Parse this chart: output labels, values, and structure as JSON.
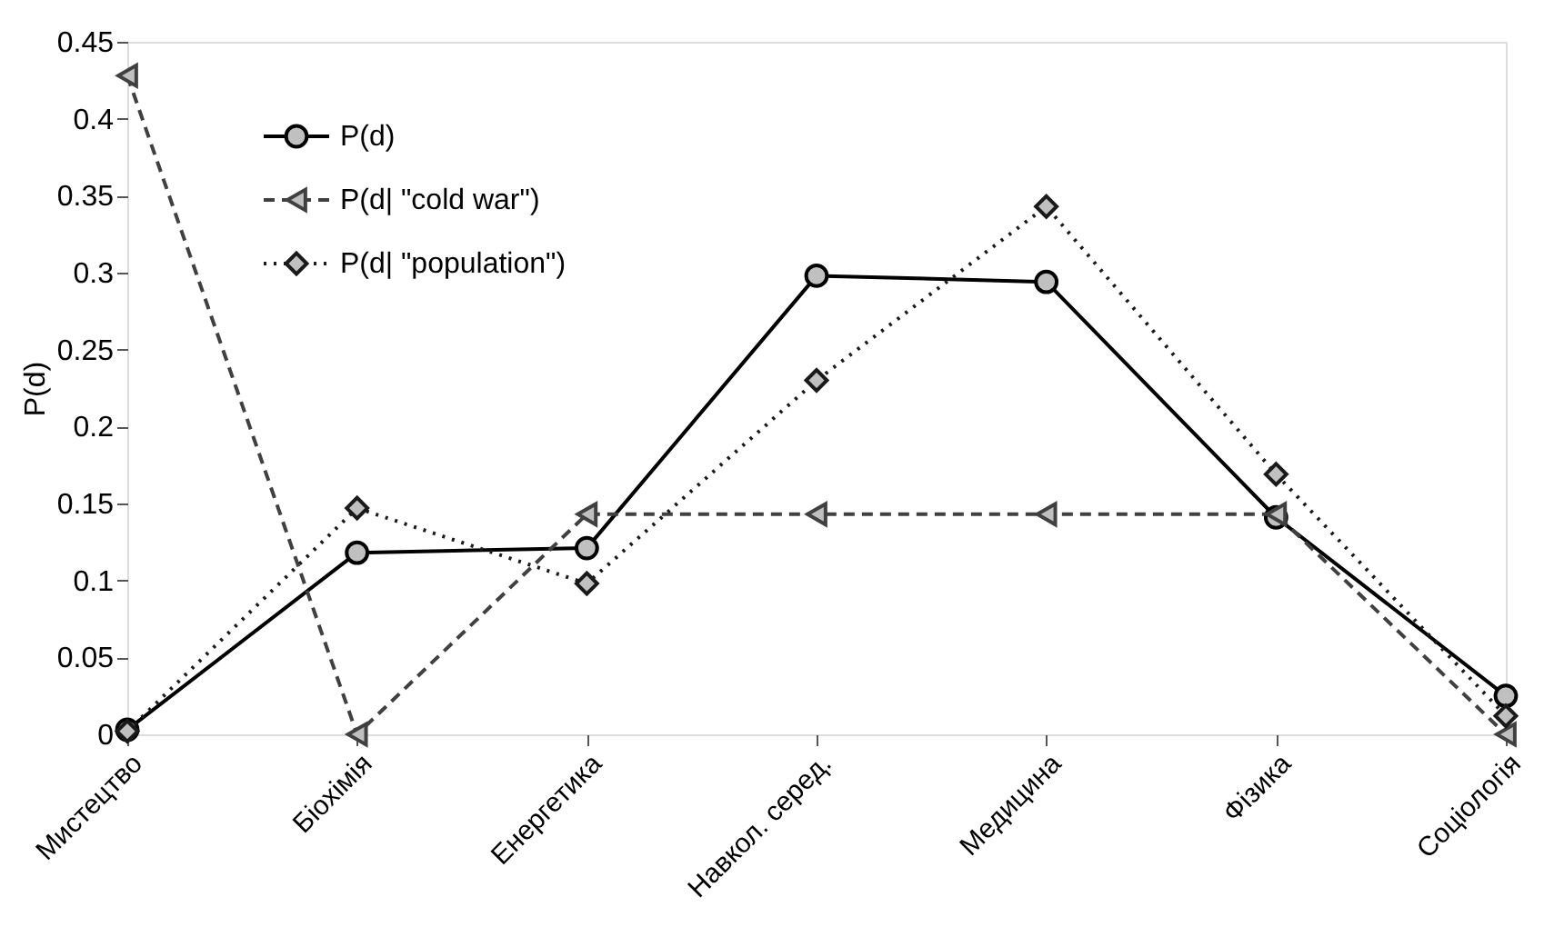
{
  "chart_data": {
    "type": "line",
    "ylabel": "P(d)",
    "categories": [
      "Мистецтво",
      "Біохімія",
      "Енергетика",
      "Навкол. серед.",
      "Медицина",
      "Фізика",
      "Соціологія"
    ],
    "series": [
      {
        "name": "P(d)",
        "color": "#000000",
        "marker": "circle",
        "line_style": "solid",
        "values": [
          0.003,
          0.118,
          0.121,
          0.298,
          0.294,
          0.141,
          0.025
        ]
      },
      {
        "name": "P(d|  \"cold  war\")",
        "color": "#404040",
        "marker": "triangle",
        "line_style": "dashed",
        "values": [
          0.428,
          0,
          0.143,
          0.143,
          0.143,
          0.143,
          0
        ]
      },
      {
        "name": "P(d|  \"population\")",
        "color": "#1a1a1a",
        "marker": "diamond",
        "line_style": "dotted",
        "values": [
          0.002,
          0.147,
          0.098,
          0.23,
          0.343,
          0.169,
          0.012
        ]
      }
    ],
    "ylim": [
      0,
      0.45
    ],
    "yticks": [
      0,
      0.05,
      0.1,
      0.15,
      0.2,
      0.25,
      0.3,
      0.35,
      0.4,
      0.45
    ],
    "grid": false,
    "legend": "top left"
  }
}
